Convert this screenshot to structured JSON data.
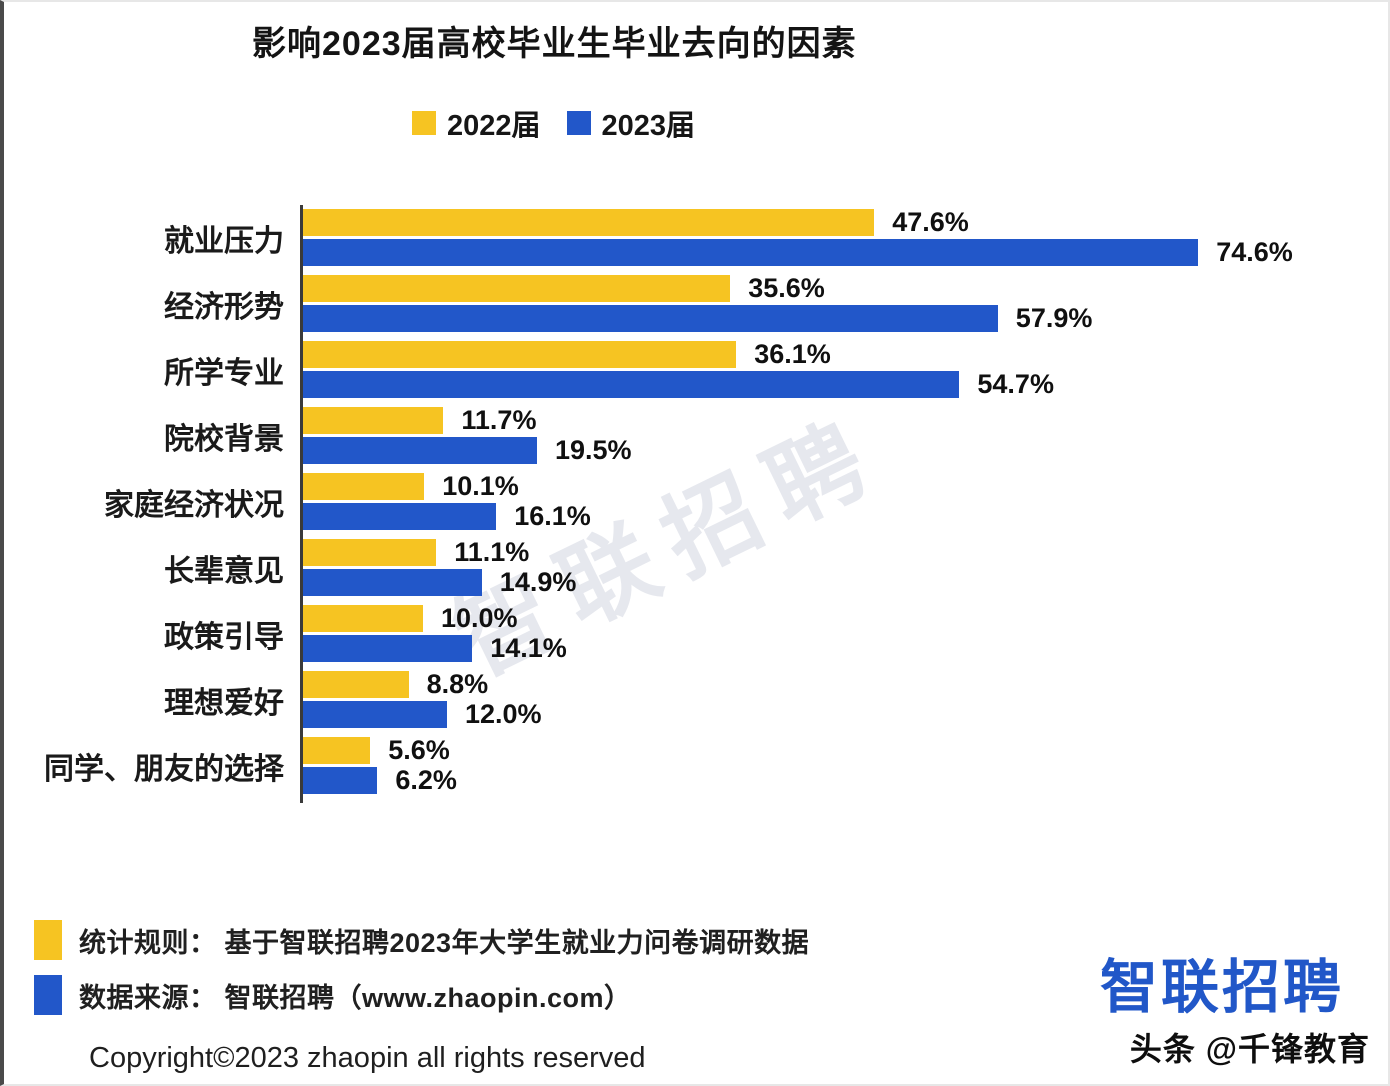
{
  "title": "影响2023届高校毕业生毕业去向的因素",
  "colors": {
    "yellow": "#F6C422",
    "blue": "#2257C9",
    "axis": "#3a3a3a",
    "brand_blue": "#2157C8"
  },
  "chart_data": {
    "type": "bar",
    "orientation": "horizontal",
    "title": "影响2023届高校毕业生毕业去向的因素",
    "xlabel": "",
    "ylabel": "",
    "xlim": [
      0,
      80
    ],
    "grid": false,
    "legend_position": "top",
    "value_suffix": "%",
    "categories": [
      "就业压力",
      "经济形势",
      "所学专业",
      "院校背景",
      "家庭经济状况",
      "长辈意见",
      "政策引导",
      "理想爱好",
      "同学、朋友的选择"
    ],
    "series": [
      {
        "name": "2022届",
        "color": "#F6C422",
        "values": [
          47.6,
          35.6,
          36.1,
          11.7,
          10.1,
          11.1,
          10.0,
          8.8,
          5.6
        ]
      },
      {
        "name": "2023届",
        "color": "#2257C9",
        "values": [
          74.6,
          57.9,
          54.7,
          19.5,
          16.1,
          14.9,
          14.1,
          12.0,
          6.2
        ]
      }
    ]
  },
  "watermark": "智联招聘",
  "footer": {
    "stat_rule": "统计规则： 基于智联招聘2023年大学生就业力问卷调研数据",
    "data_source": "数据来源： 智联招聘（www.zhaopin.com）",
    "copyright": "Copyright©2023 zhaopin all rights reserved"
  },
  "branding": {
    "logo": "智联招聘",
    "attribution": "头条 @千锋教育"
  }
}
